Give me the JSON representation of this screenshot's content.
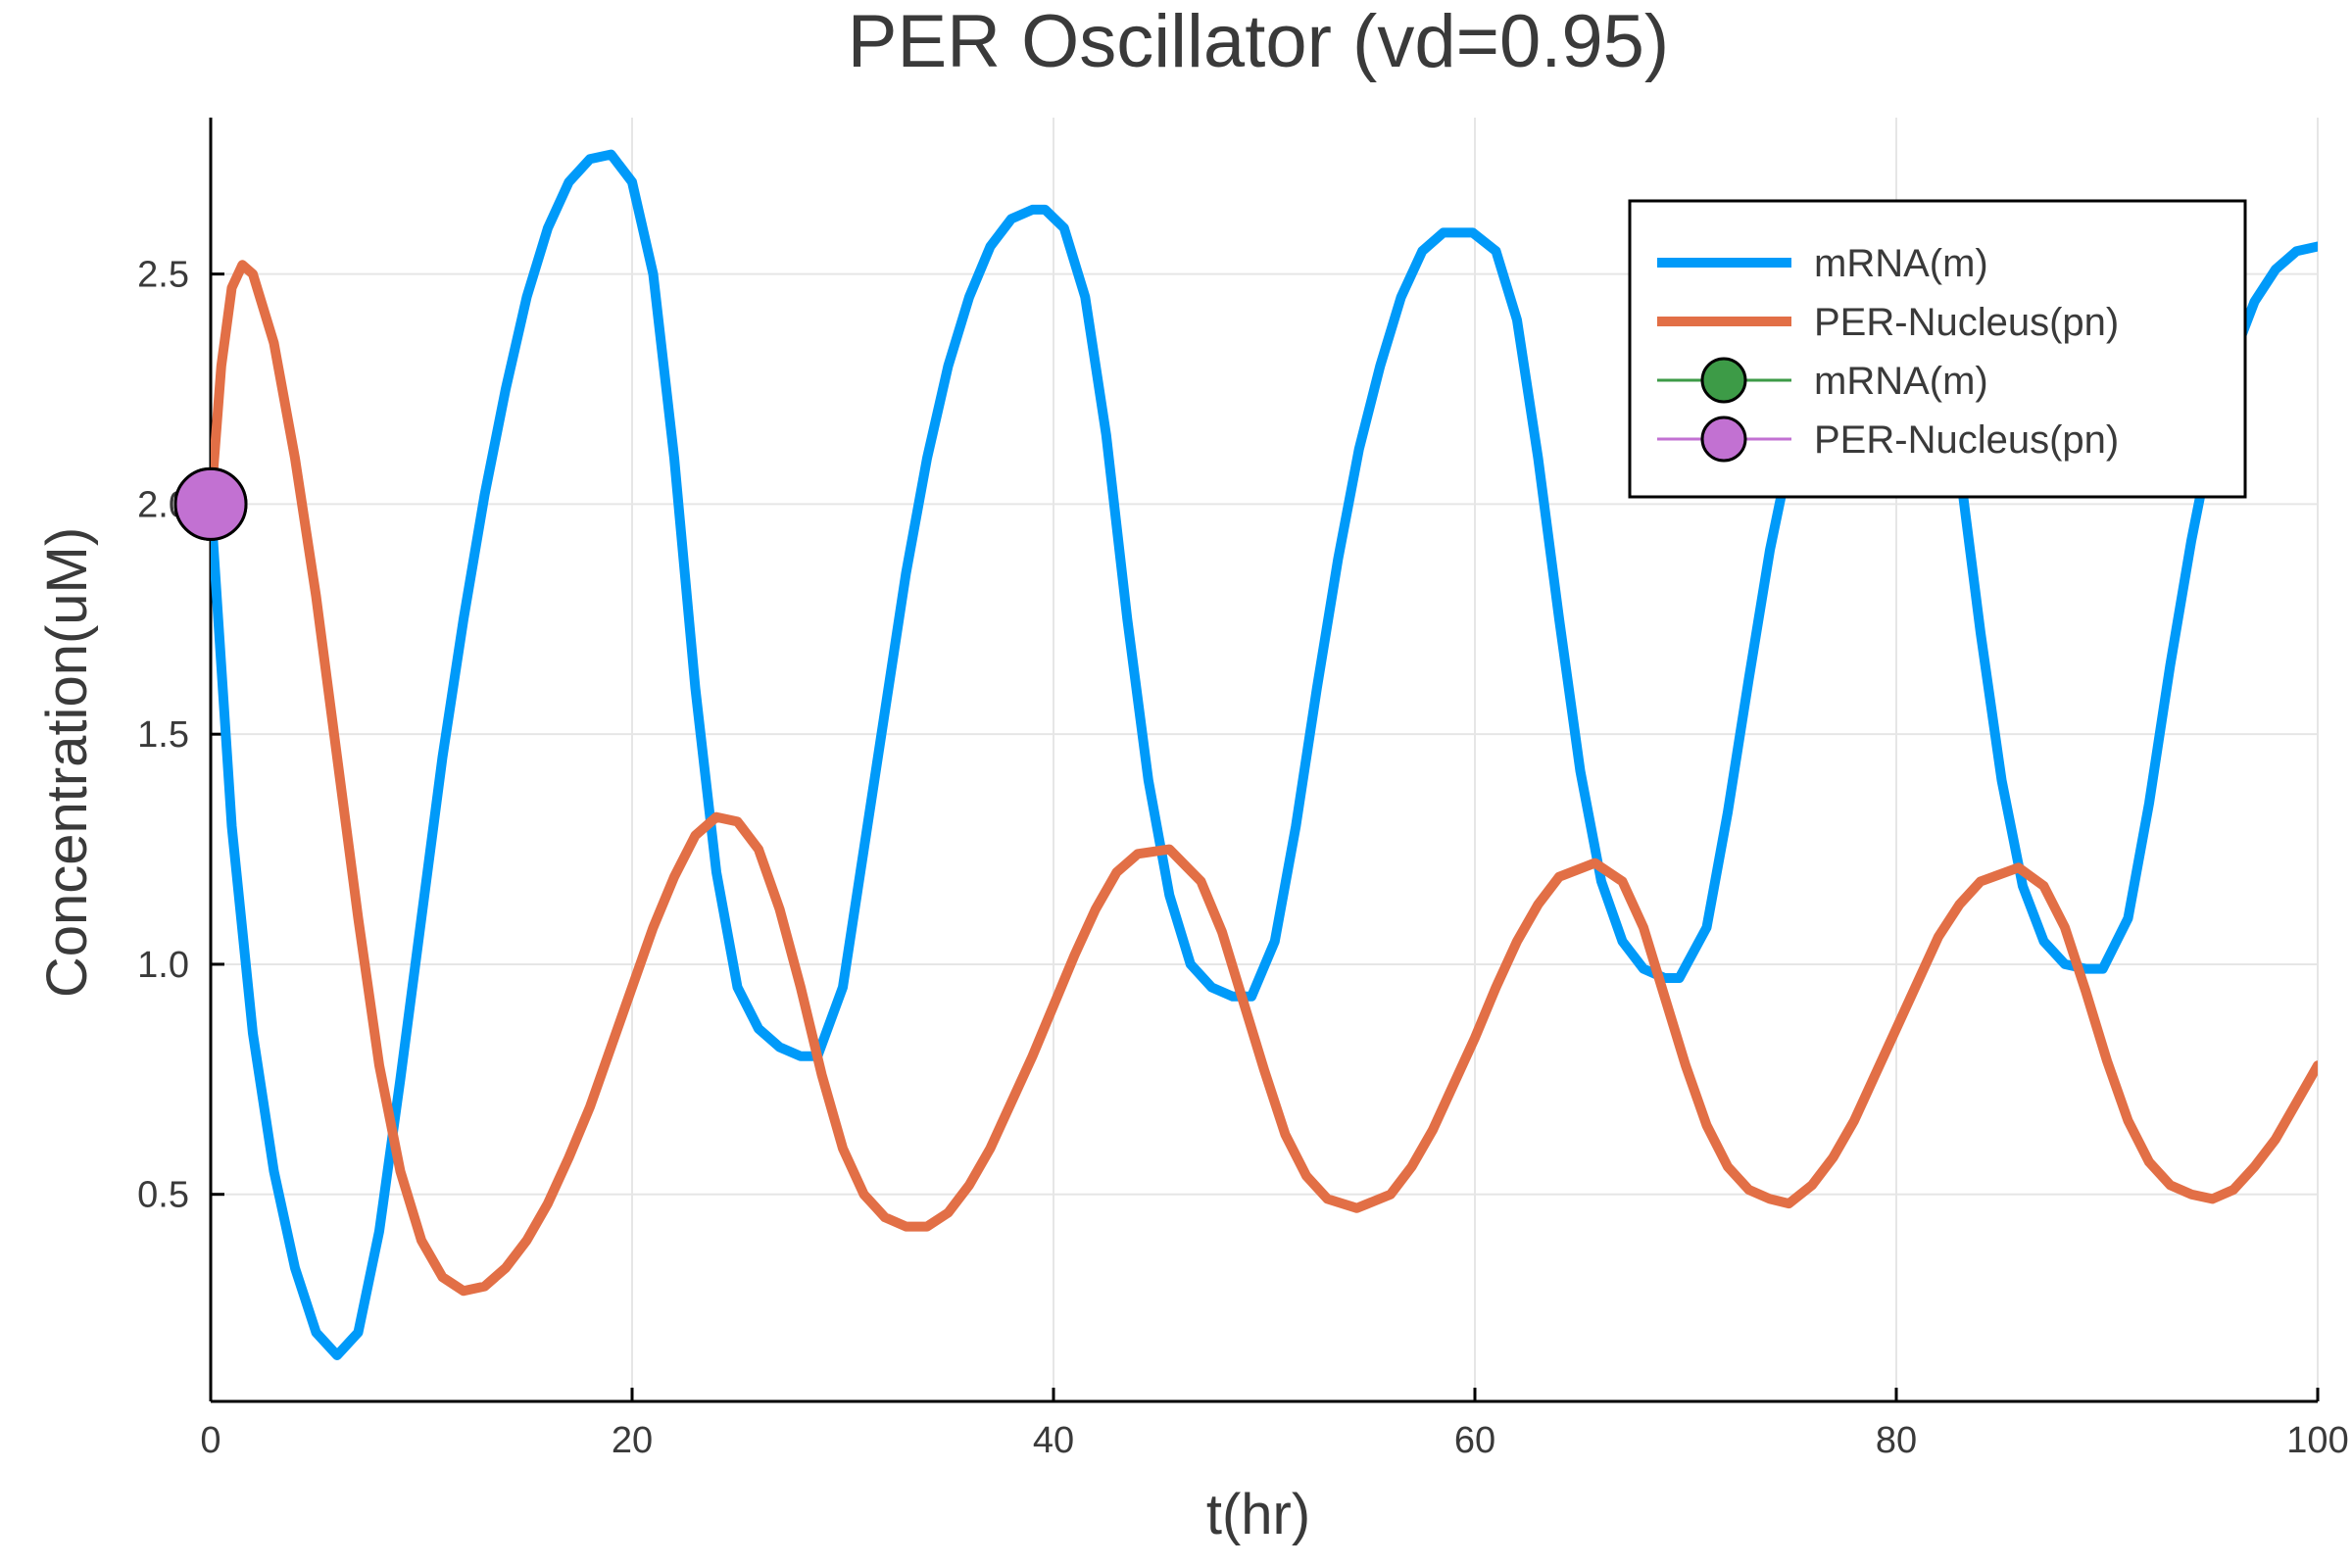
{
  "chart_data": {
    "type": "line",
    "title": "PER Oscillator (vd=0.95)",
    "xlabel": "t(hr)",
    "ylabel": "Concentration(uM)",
    "xlim": [
      0,
      100
    ],
    "ylim": [
      0.05,
      2.84
    ],
    "xticks": [
      0,
      20,
      40,
      60,
      80,
      100
    ],
    "xtick_labels": [
      "0",
      "20",
      "40",
      "60",
      "80",
      "100"
    ],
    "yticks": [
      0.5,
      1.0,
      1.5,
      2.0,
      2.5
    ],
    "ytick_labels": [
      "0.5",
      "1.0",
      "1.5",
      "2.0",
      "2.5"
    ],
    "grid": true,
    "legend_position": "top-right",
    "series": [
      {
        "name": "mRNA(m)",
        "style": "line",
        "color": "#009AF9",
        "x": [
          0,
          1,
          2,
          3,
          4,
          5,
          6,
          7,
          8,
          9,
          10,
          11,
          12,
          13,
          14,
          15,
          16,
          17,
          18,
          19,
          20,
          21,
          22,
          23,
          24,
          25,
          26,
          27,
          28,
          28.8,
          30,
          31,
          32,
          33,
          34,
          35,
          36,
          37,
          38,
          39,
          39.6,
          40.5,
          41.5,
          42.5,
          43.5,
          44.5,
          45.5,
          46.5,
          47.5,
          48.5,
          49.4,
          50.5,
          51.5,
          52.5,
          53.5,
          54.5,
          55.5,
          56.5,
          57.5,
          58.5,
          59.9,
          61,
          62,
          63,
          64,
          65,
          66,
          67,
          68,
          69,
          69.7,
          71,
          72,
          73,
          74,
          75,
          76,
          77,
          78,
          79,
          80.1,
          81,
          82,
          83,
          84,
          85,
          86,
          87,
          88,
          89,
          89.8,
          91,
          92,
          93,
          94,
          95,
          96,
          97,
          98,
          99,
          100
        ],
        "y": [
          2.0,
          1.3,
          0.85,
          0.55,
          0.34,
          0.2,
          0.15,
          0.2,
          0.42,
          0.75,
          1.1,
          1.45,
          1.75,
          2.02,
          2.25,
          2.45,
          2.6,
          2.7,
          2.75,
          2.76,
          2.7,
          2.5,
          2.1,
          1.6,
          1.2,
          0.95,
          0.86,
          0.82,
          0.8,
          0.8,
          0.95,
          1.25,
          1.55,
          1.85,
          2.1,
          2.3,
          2.45,
          2.56,
          2.62,
          2.64,
          2.64,
          2.6,
          2.45,
          2.15,
          1.75,
          1.4,
          1.15,
          1.0,
          0.95,
          0.93,
          0.93,
          1.05,
          1.3,
          1.6,
          1.88,
          2.12,
          2.3,
          2.45,
          2.55,
          2.59,
          2.59,
          2.55,
          2.4,
          2.1,
          1.75,
          1.42,
          1.18,
          1.05,
          0.99,
          0.97,
          0.97,
          1.08,
          1.33,
          1.62,
          1.9,
          2.12,
          2.3,
          2.43,
          2.52,
          2.57,
          2.58,
          2.54,
          2.38,
          2.08,
          1.72,
          1.4,
          1.17,
          1.05,
          1.0,
          0.99,
          0.99,
          1.1,
          1.35,
          1.65,
          1.92,
          2.15,
          2.32,
          2.44,
          2.51,
          2.55,
          2.56
        ]
      },
      {
        "name": "PER-Nucleus(pn)",
        "style": "line",
        "color": "#E26F46",
        "x": [
          0,
          0.5,
          1,
          1.5,
          2,
          3,
          4,
          5,
          6,
          7,
          8,
          9,
          10,
          11,
          12,
          13,
          14,
          15,
          16,
          17,
          18,
          19,
          20,
          21,
          22,
          23,
          24,
          25,
          26,
          27,
          28,
          29,
          30,
          31,
          32,
          33,
          34,
          35,
          36,
          37,
          38,
          39,
          40,
          41,
          42,
          43,
          44,
          45.5,
          47,
          48,
          49,
          50,
          51,
          52,
          53,
          54.4,
          56,
          57,
          58,
          59,
          60,
          61,
          62,
          63,
          64,
          65.7,
          67,
          68,
          69,
          70,
          71,
          72,
          73,
          74,
          74.9,
          76,
          77,
          78,
          79,
          80,
          81,
          82,
          83,
          84,
          85.8,
          87,
          88,
          89,
          90,
          91,
          92,
          93,
          94,
          95,
          96,
          97,
          98,
          99,
          100
        ],
        "y": [
          2.0,
          2.3,
          2.47,
          2.52,
          2.5,
          2.35,
          2.1,
          1.8,
          1.45,
          1.1,
          0.78,
          0.55,
          0.4,
          0.32,
          0.29,
          0.3,
          0.34,
          0.4,
          0.48,
          0.58,
          0.69,
          0.82,
          0.95,
          1.08,
          1.19,
          1.28,
          1.32,
          1.31,
          1.25,
          1.12,
          0.95,
          0.76,
          0.6,
          0.5,
          0.45,
          0.43,
          0.43,
          0.46,
          0.52,
          0.6,
          0.7,
          0.8,
          0.91,
          1.02,
          1.12,
          1.2,
          1.24,
          1.25,
          1.18,
          1.07,
          0.92,
          0.77,
          0.63,
          0.54,
          0.49,
          0.47,
          0.5,
          0.56,
          0.64,
          0.74,
          0.84,
          0.95,
          1.05,
          1.13,
          1.19,
          1.22,
          1.18,
          1.08,
          0.93,
          0.78,
          0.65,
          0.56,
          0.51,
          0.49,
          0.48,
          0.52,
          0.58,
          0.66,
          0.76,
          0.86,
          0.96,
          1.06,
          1.13,
          1.18,
          1.21,
          1.17,
          1.08,
          0.94,
          0.79,
          0.66,
          0.57,
          0.52,
          0.5,
          0.49,
          0.51,
          0.56,
          0.62,
          0.7,
          0.78
        ]
      },
      {
        "name": "mRNA(m)",
        "style": "marker",
        "color": "#3D9B47",
        "x": [
          0
        ],
        "y": [
          2.0
        ]
      },
      {
        "name": "PER-Nucleus(pn)",
        "style": "marker",
        "color": "#C271D2",
        "x": [
          0
        ],
        "y": [
          2.0
        ]
      }
    ]
  }
}
